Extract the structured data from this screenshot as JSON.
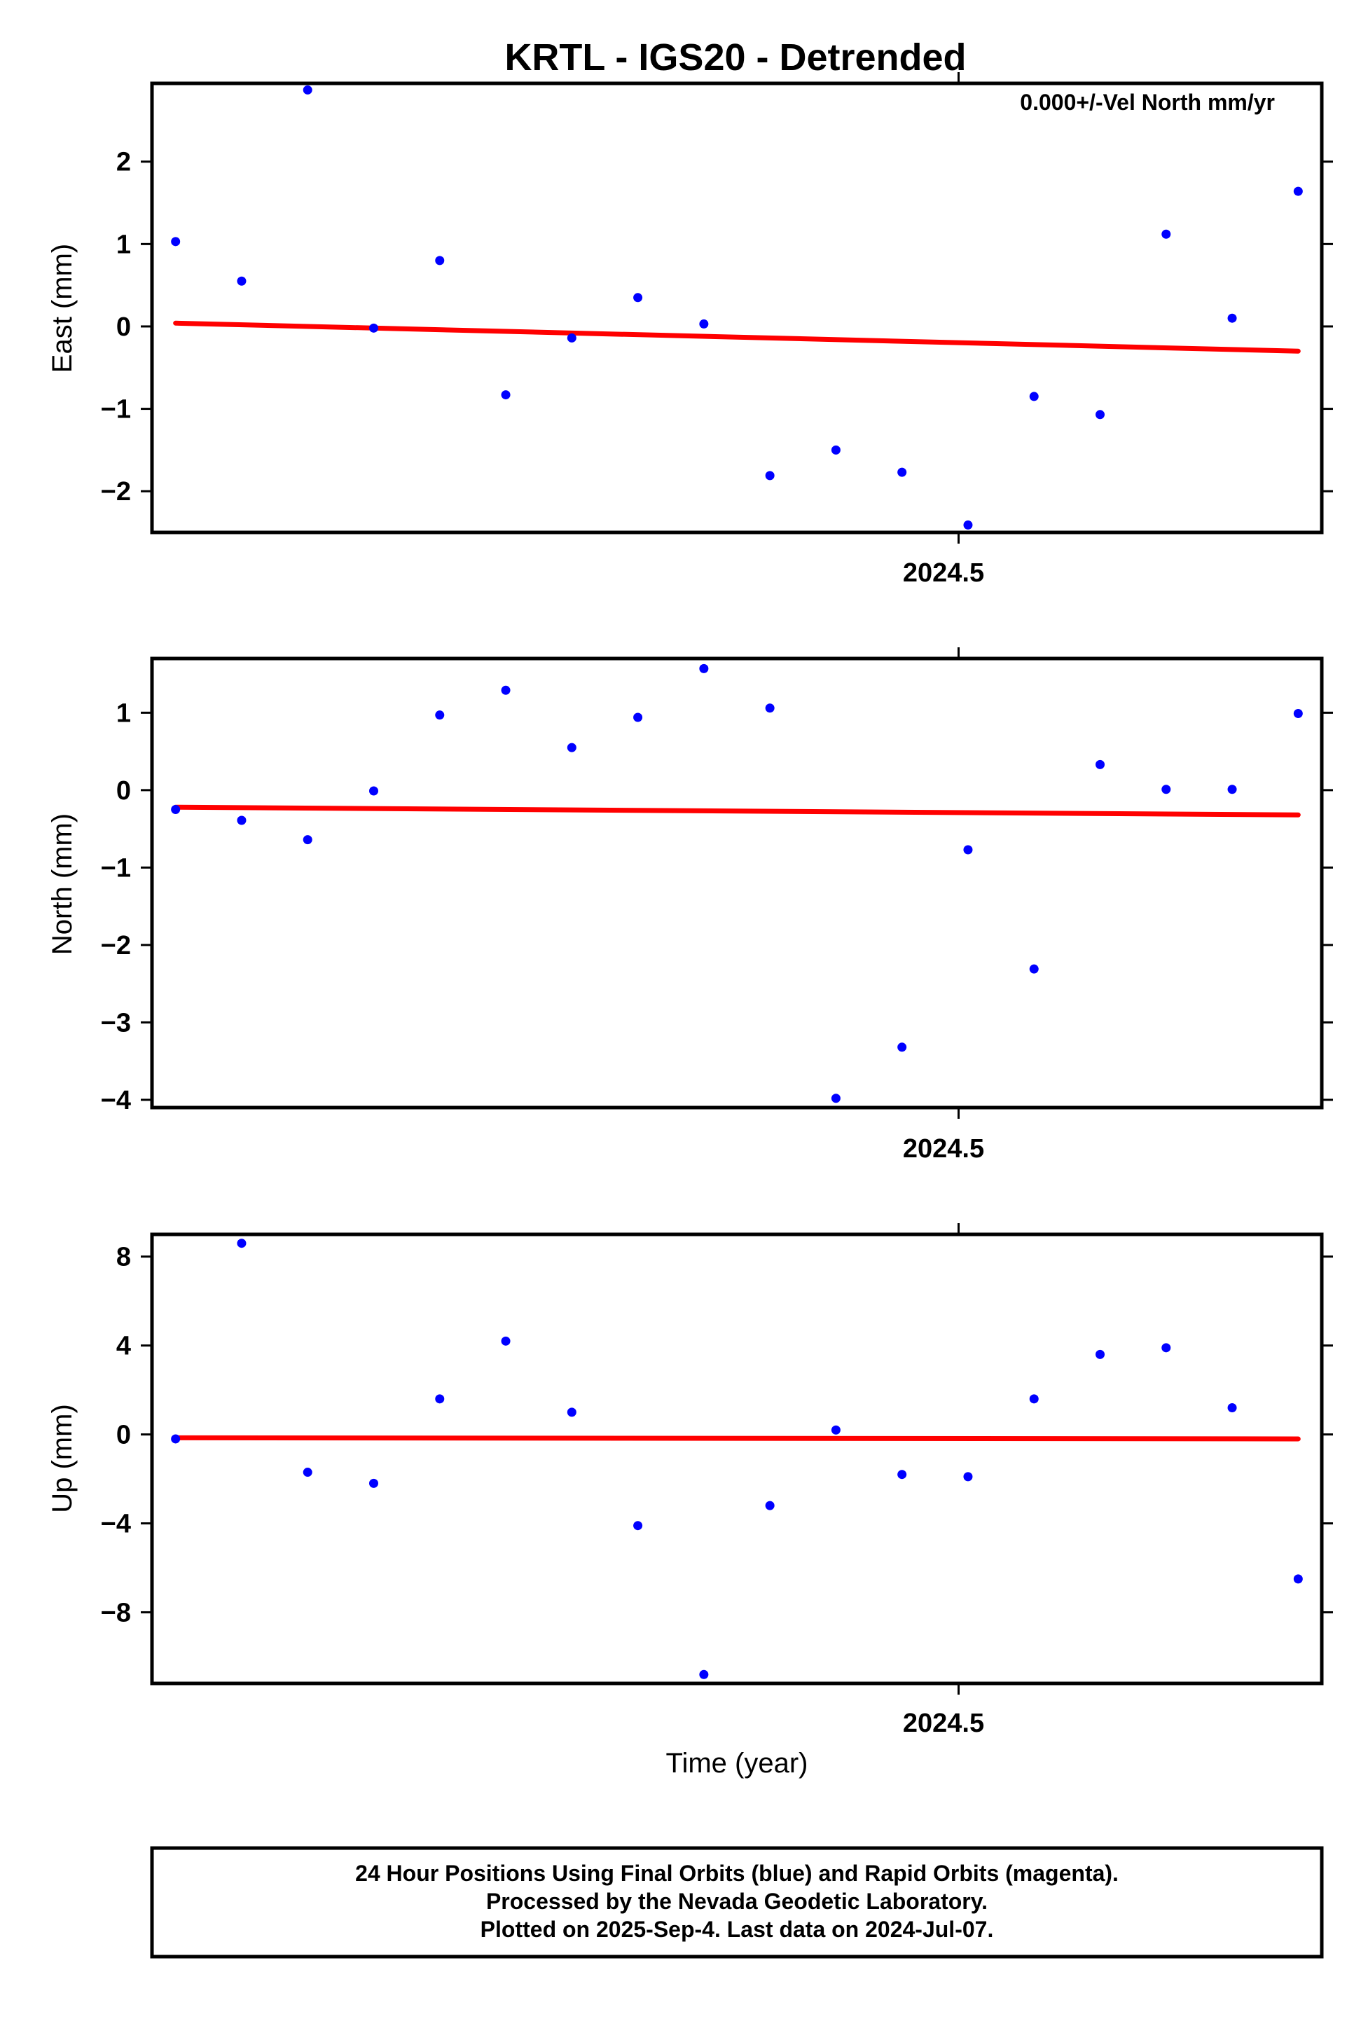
{
  "chart_data": {
    "type": "scatter",
    "title": "KRTL - IGS20 - Detrended",
    "xlabel": "Time (year)",
    "x_tick_labels": [
      "2024.5"
    ],
    "annotation": "0.000+/-Vel North mm/yr",
    "x": [
      2024.417,
      2024.424,
      2024.431,
      2024.438,
      2024.445,
      2024.452,
      2024.459,
      2024.466,
      2024.473,
      2024.48,
      2024.487,
      2024.494,
      2024.501,
      2024.508,
      2024.515,
      2024.522,
      2024.529,
      2024.536
    ],
    "xlim": [
      2024.4145,
      2024.5385
    ],
    "panels": [
      {
        "name": "east",
        "ylabel": "East (mm)",
        "ylim": [
          -2.5,
          2.95
        ],
        "yticks": [
          2,
          1,
          0,
          -1,
          -2
        ],
        "ytick_labels": [
          "2",
          "1",
          "0",
          "−1",
          "−2"
        ],
        "values": [
          1.03,
          0.55,
          2.87,
          -0.02,
          0.8,
          -0.83,
          -0.14,
          0.35,
          0.03,
          -1.81,
          -1.5,
          -1.77,
          -2.41,
          -0.85,
          -1.07,
          1.12,
          0.1,
          1.64
        ],
        "trend": [
          0.04,
          -0.3
        ]
      },
      {
        "name": "north",
        "ylabel": "North (mm)",
        "ylim": [
          -4.1,
          1.7
        ],
        "yticks": [
          1,
          0,
          -1,
          -2,
          -3,
          -4
        ],
        "ytick_labels": [
          "1",
          "0",
          "−1",
          "−2",
          "−3",
          "−4"
        ],
        "values": [
          -0.25,
          -0.39,
          -0.64,
          -0.01,
          0.97,
          1.29,
          0.55,
          0.94,
          1.57,
          1.06,
          -3.98,
          -3.32,
          -0.77,
          -2.31,
          0.33,
          0.01,
          0.01,
          0.99
        ],
        "trend": [
          -0.22,
          -0.32
        ]
      },
      {
        "name": "up",
        "ylabel": "Up (mm)",
        "ylim": [
          -11.2,
          9.0
        ],
        "yticks": [
          8,
          4,
          0,
          -4,
          -8
        ],
        "ytick_labels": [
          "8",
          "4",
          "0",
          "−4",
          "−8"
        ],
        "values": [
          -0.2,
          8.6,
          -1.7,
          -2.2,
          1.6,
          4.2,
          1.0,
          -4.1,
          -10.8,
          -3.2,
          0.2,
          -1.8,
          -1.9,
          1.6,
          3.6,
          3.9,
          1.2,
          -6.5
        ],
        "trend": [
          -0.15,
          -0.2
        ]
      }
    ],
    "point_color": "#0000ff",
    "trend_color": "#ff0000"
  },
  "footer": {
    "line1": "24 Hour Positions Using Final Orbits (blue) and Rapid Orbits (magenta).",
    "line2": "Processed by the Nevada Geodetic Laboratory.",
    "line3": "Plotted on 2025-Sep-4. Last data on 2024-Jul-07."
  }
}
